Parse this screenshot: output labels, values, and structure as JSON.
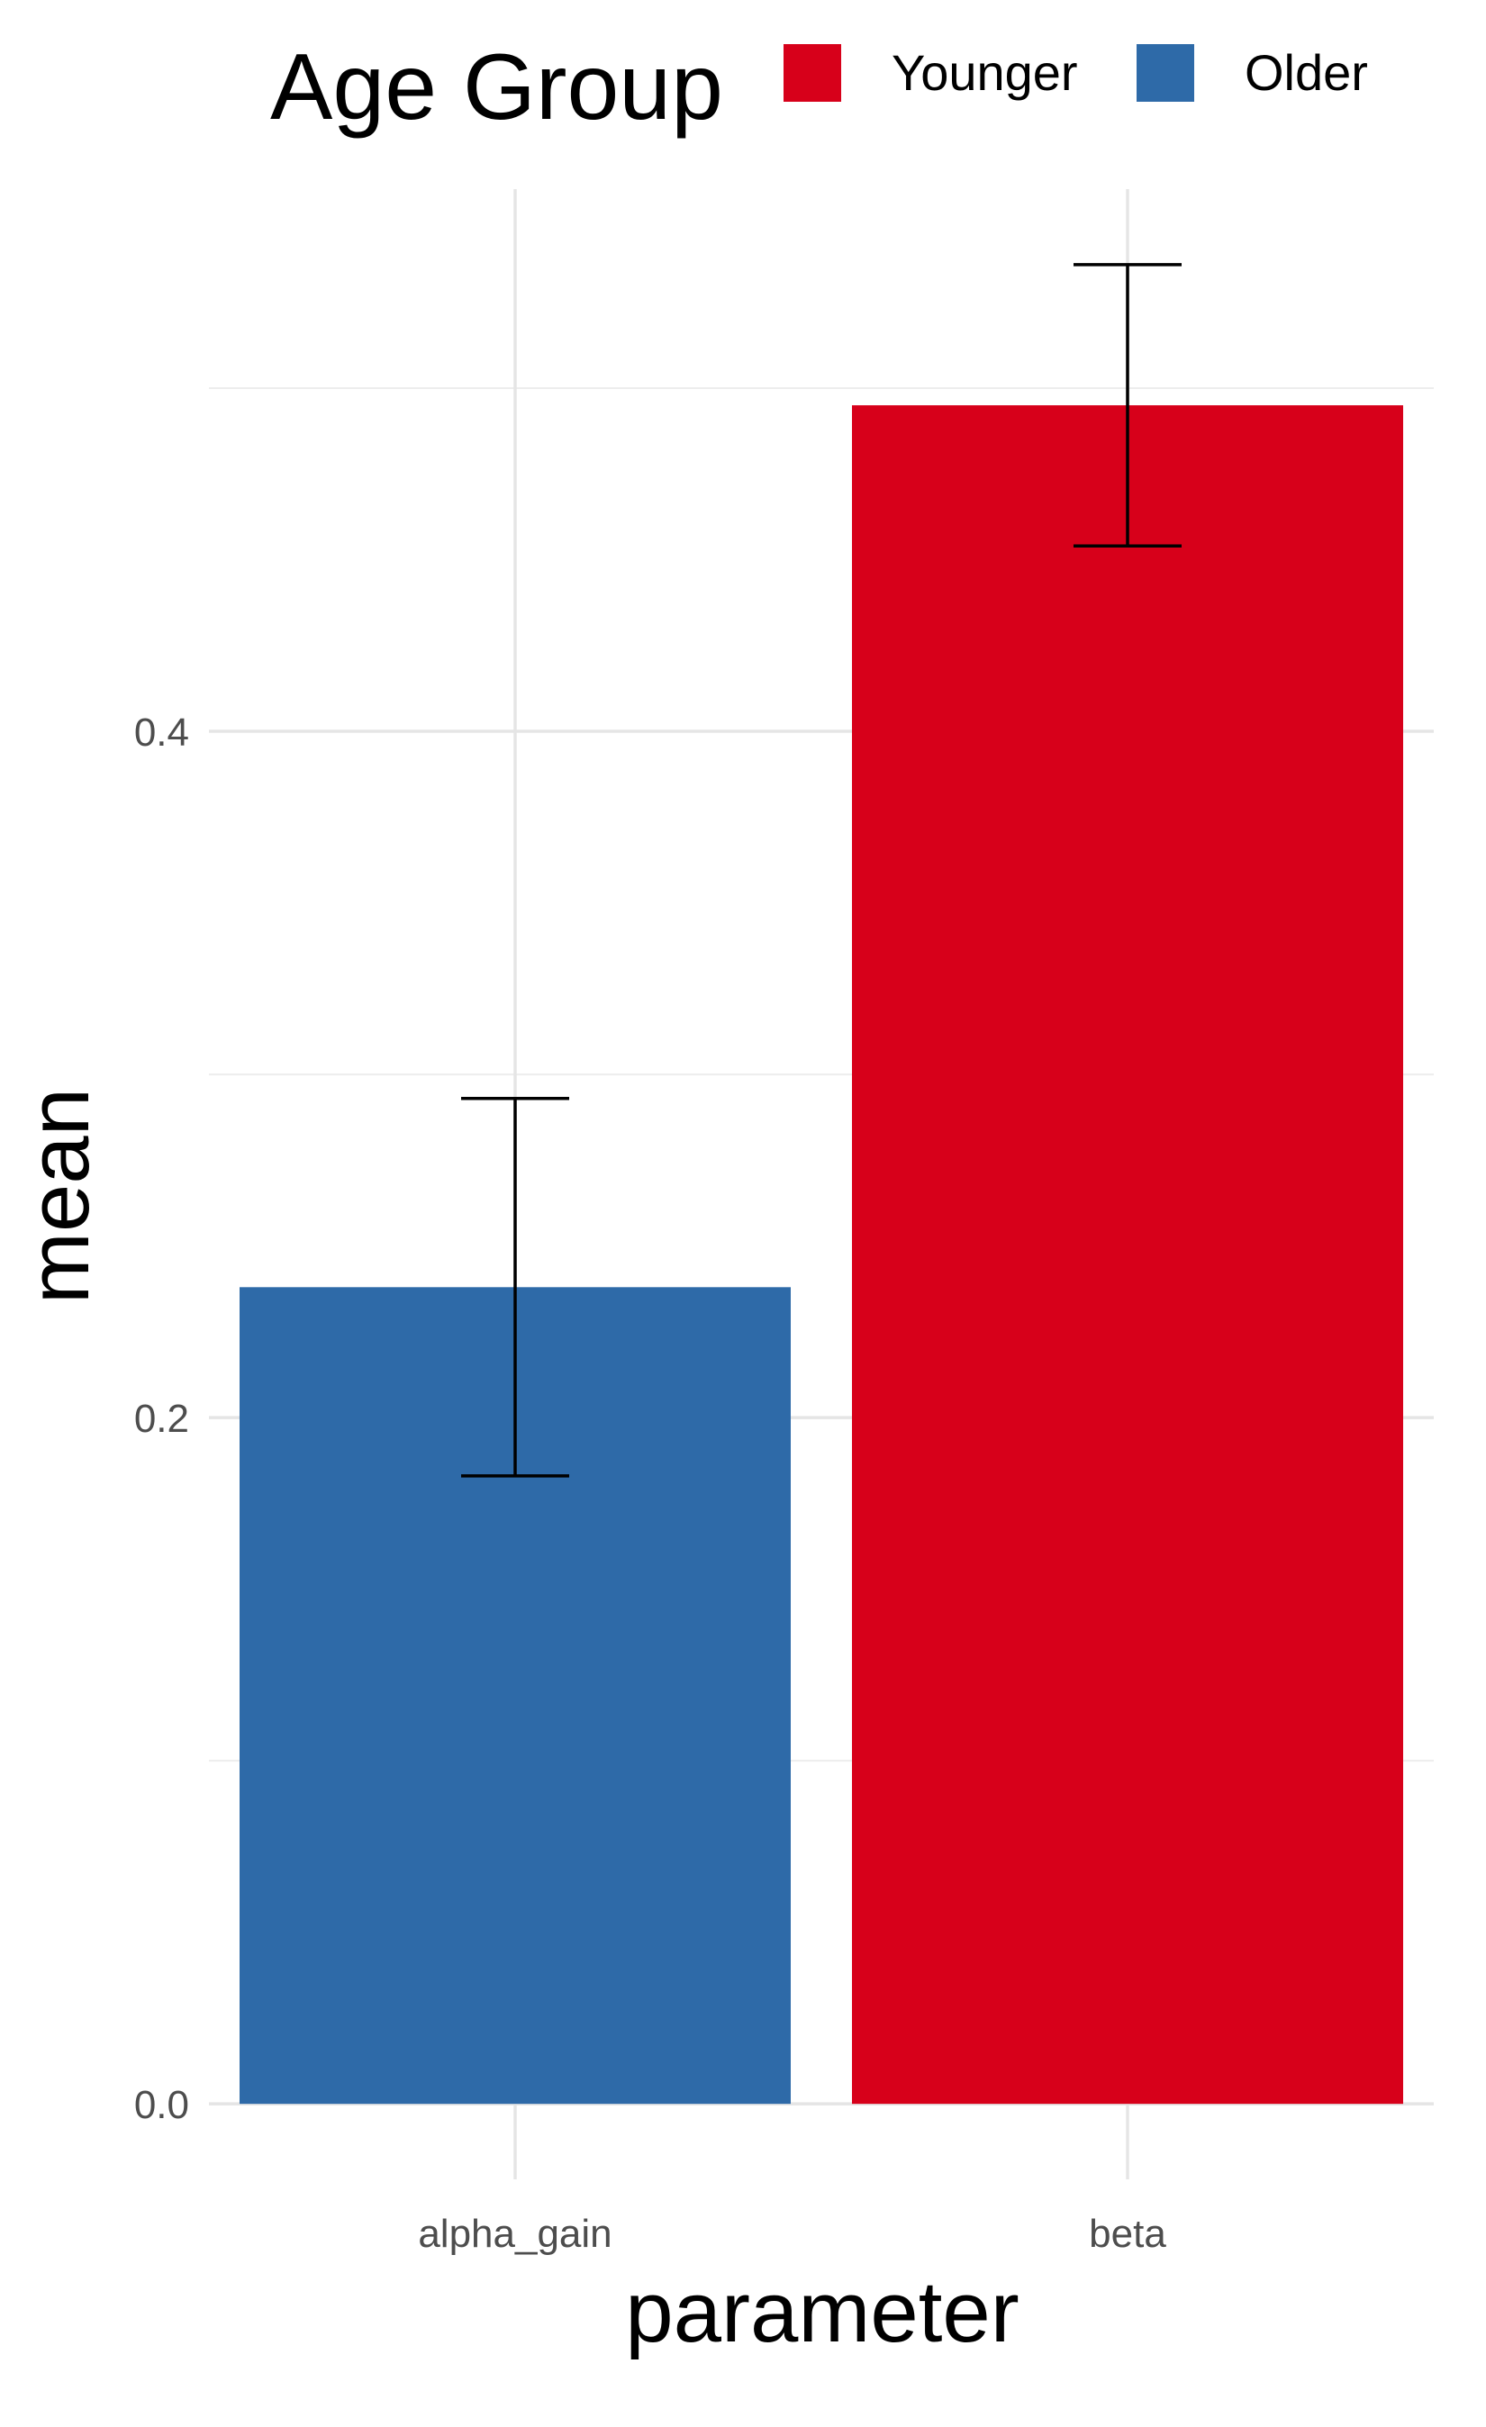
{
  "chart_data": {
    "type": "bar",
    "title": "",
    "xlabel": "parameter",
    "ylabel": "mean",
    "categories": [
      "alpha_gain",
      "beta"
    ],
    "values": [
      0.238,
      0.495
    ],
    "error_low": [
      0.183,
      0.454
    ],
    "error_high": [
      0.293,
      0.536
    ],
    "bar_groups": [
      "Older",
      "Younger"
    ],
    "ylim": [
      -0.022,
      0.558
    ],
    "yticks": [
      0.0,
      0.2,
      0.4
    ],
    "ytick_labels": [
      "0.0",
      "0.2",
      "0.4"
    ],
    "grid": true,
    "legend": {
      "title": "Age Group",
      "placement": "top",
      "entries": [
        {
          "label": "Younger",
          "color": "#d7001a"
        },
        {
          "label": "Older",
          "color": "#2e6aa8"
        }
      ]
    },
    "colors": {
      "Younger": "#d7001a",
      "Older": "#2e6aa8"
    }
  }
}
